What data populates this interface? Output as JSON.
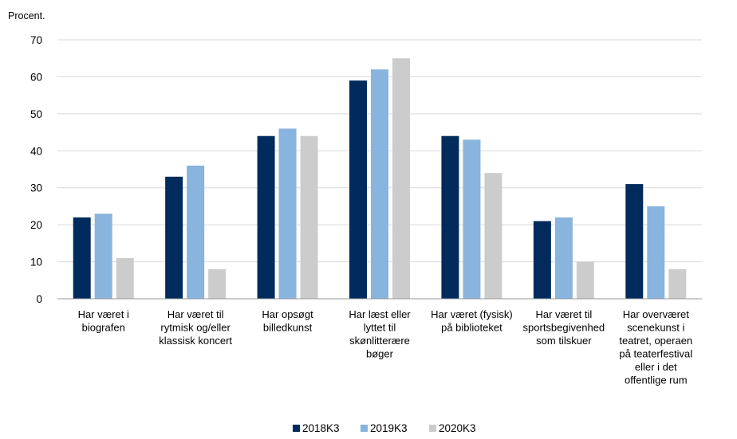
{
  "chart_data": {
    "type": "bar",
    "ylabel": "Procent.",
    "ylim": [
      0,
      70
    ],
    "yticks": [
      0,
      10,
      20,
      30,
      40,
      50,
      60,
      70
    ],
    "grid": true,
    "legend_position": "bottom",
    "categories": [
      "Har været i biografen",
      "Har været til rytmisk og/eller klassisk koncert",
      "Har opsøgt billedkunst",
      "Har læst eller lyttet til skønlitterære bøger",
      "Har været (fysisk) på biblioteket",
      "Har været til sportsbegivenhed som tilskuer",
      "Har overværet scenekunst i teatret, operaen på teaterfestival eller i det offentlige rum"
    ],
    "category_lines": [
      [
        "Har været i",
        "biografen"
      ],
      [
        "Har været til",
        "rytmisk og/eller",
        "klassisk koncert"
      ],
      [
        "Har opsøgt",
        "billedkunst"
      ],
      [
        "Har læst eller",
        "lyttet til",
        "skønlitterære",
        "bøger"
      ],
      [
        "Har været (fysisk)",
        "på biblioteket"
      ],
      [
        "Har været til",
        "sportsbegivenhed",
        "som tilskuer"
      ],
      [
        "Har overværet",
        "scenekunst i",
        "teatret, operaen",
        "på teaterfestival",
        "eller i det",
        "offentlige rum"
      ]
    ],
    "series": [
      {
        "name": "2018K3",
        "color": "#002b5c",
        "values": [
          22,
          33,
          44,
          59,
          44,
          21,
          31
        ]
      },
      {
        "name": "2019K3",
        "color": "#88b4de",
        "values": [
          23,
          36,
          46,
          62,
          43,
          22,
          25
        ]
      },
      {
        "name": "2020K3",
        "color": "#cccccc",
        "values": [
          11,
          8,
          44,
          65,
          34,
          10,
          8
        ]
      }
    ]
  }
}
